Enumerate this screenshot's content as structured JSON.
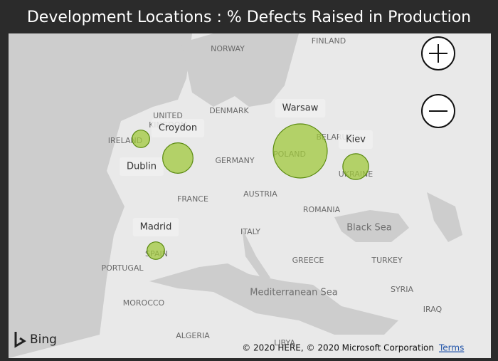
{
  "header": {
    "title": "Development Locations : % Defects Raised in Production"
  },
  "locations": [
    {
      "name": "Dublin",
      "value": 6
    },
    {
      "name": "Croydon",
      "value": 18
    },
    {
      "name": "Warsaw",
      "value": 57
    },
    {
      "name": "Kiev",
      "value": 13
    },
    {
      "name": "Madrid",
      "value": 6
    }
  ],
  "map_labels": [
    "NORWAY",
    "FINLAND",
    "UNITED",
    "KINGDOM",
    "DENMARK",
    "IRELAND",
    "GERMANY",
    "POLAND",
    "BELARUS",
    "UKRAINE",
    "FRANCE",
    "AUSTRIA",
    "ROMANIA",
    "ITALY",
    "Black Sea",
    "SPAIN",
    "PORTUGAL",
    "GREECE",
    "TURKEY",
    "SYRIA",
    "Mediterranean Sea",
    "IRAQ",
    "MOROCCO",
    "ALGERIA",
    "LIBYA"
  ],
  "footer": {
    "logo": "Bing",
    "copyright": "© 2020 HERE, © 2020 Microsoft Corporation",
    "terms": "Terms"
  }
}
